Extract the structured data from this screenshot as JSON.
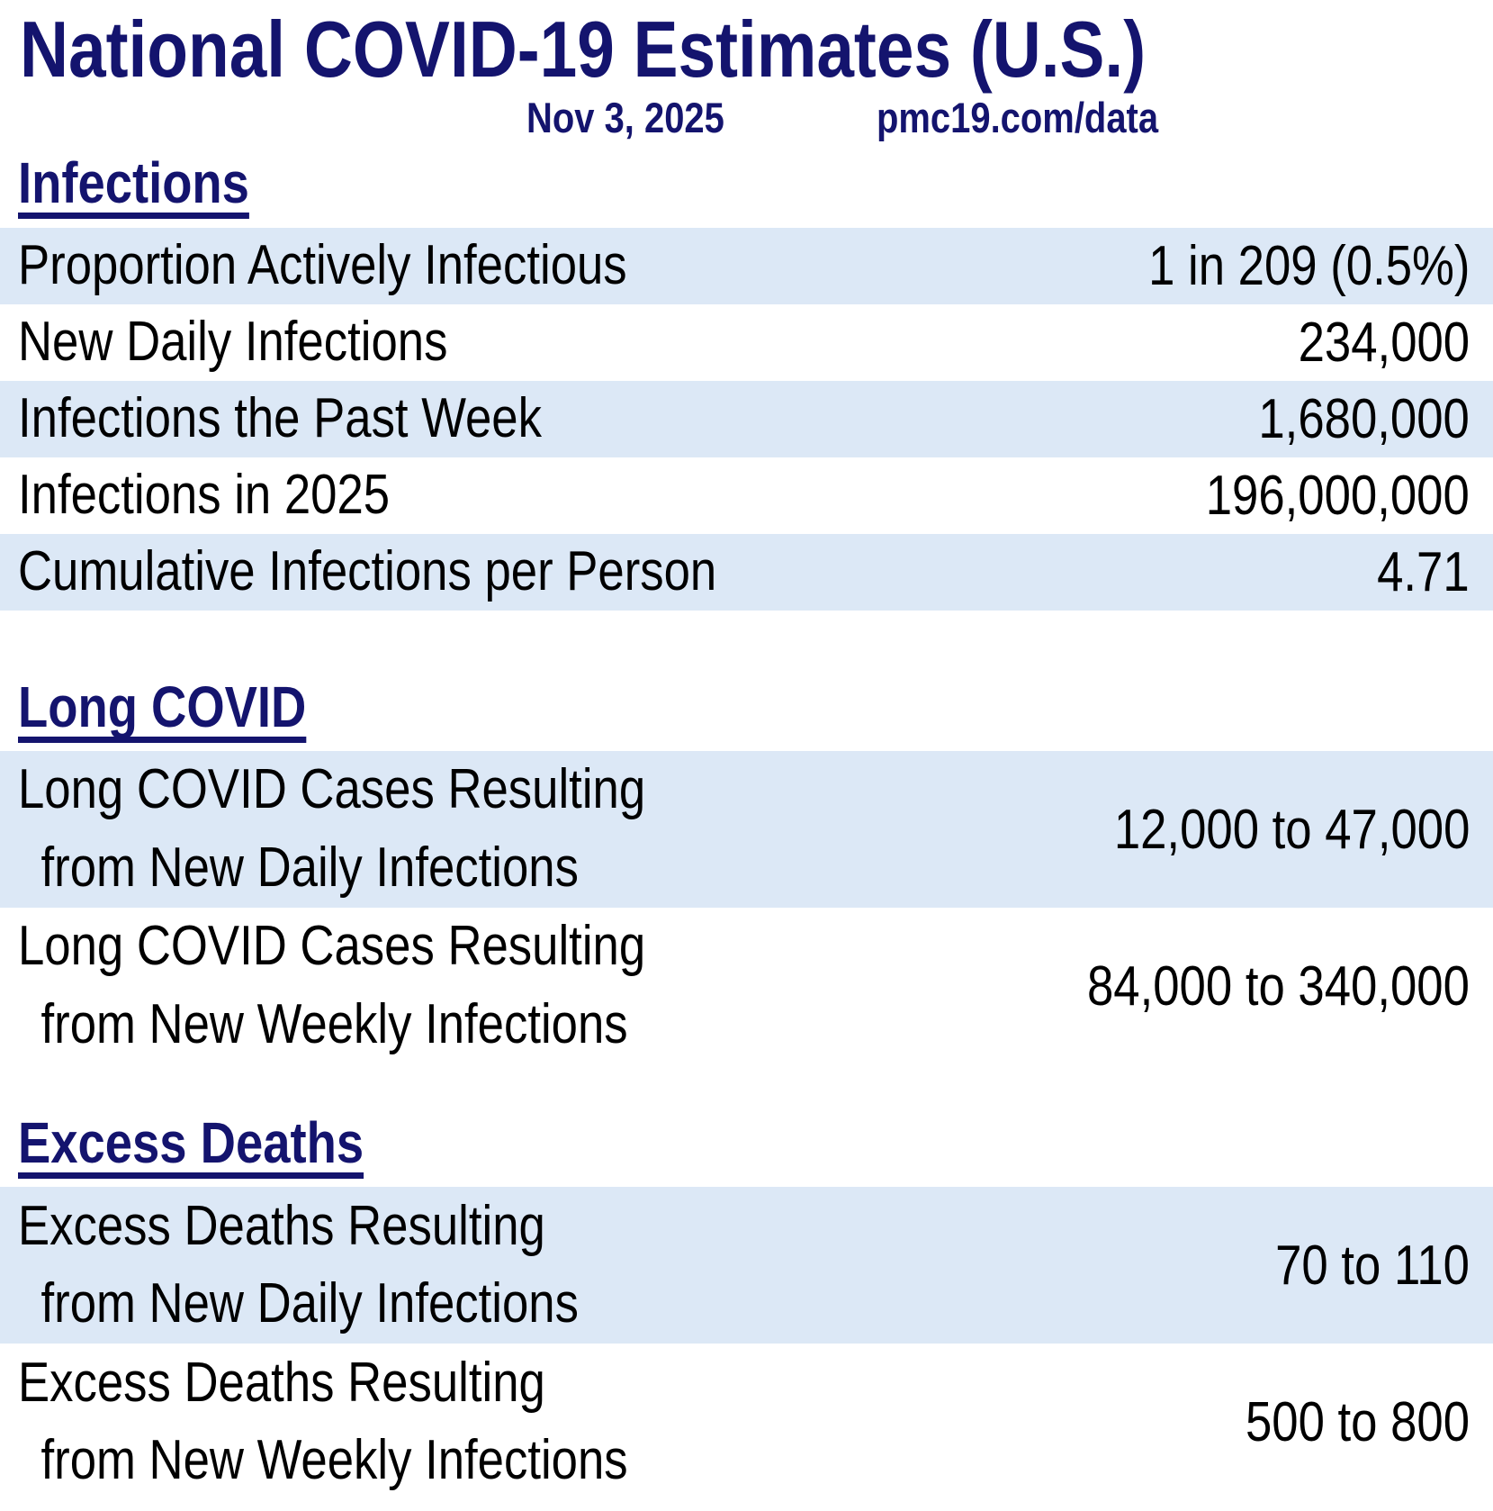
{
  "colors": {
    "accent_navy": "#14146e",
    "row_highlight": "#dce8f6",
    "text": "#000000",
    "background": "#ffffff"
  },
  "chart_data": {
    "type": "table",
    "title": "National COVID-19 Estimates (U.S.)",
    "date": "Nov 3, 2025",
    "source": "pmc19.com/data",
    "layout": {
      "zebra_striping": true,
      "values_right_aligned": true
    },
    "sections": [
      {
        "heading": "Infections",
        "rows": [
          {
            "label": "Proportion Actively Infectious",
            "value": "1 in 209 (0.5%)",
            "numeric": 0.005
          },
          {
            "label": "New Daily Infections",
            "value": "234,000",
            "numeric": 234000
          },
          {
            "label": "Infections the Past Week",
            "value": "1,680,000",
            "numeric": 1680000
          },
          {
            "label": "Infections in 2025",
            "value": "196,000,000",
            "numeric": 196000000
          },
          {
            "label": "Cumulative Infections per Person",
            "value": "4.71",
            "numeric": 4.71
          }
        ]
      },
      {
        "heading": "Long COVID",
        "rows": [
          {
            "label": "Long COVID Cases Resulting",
            "label2": "from New Daily Infections",
            "value": "12,000 to 47,000",
            "numeric_range": [
              12000,
              47000
            ]
          },
          {
            "label": "Long COVID Cases Resulting",
            "label2": "from New Weekly Infections",
            "value": "84,000 to 340,000",
            "numeric_range": [
              84000,
              340000
            ]
          }
        ]
      },
      {
        "heading": "Excess Deaths",
        "rows": [
          {
            "label": "Excess Deaths Resulting",
            "label2": "from New Daily Infections",
            "value": "70 to 110",
            "numeric_range": [
              70,
              110
            ]
          },
          {
            "label": "Excess Deaths Resulting",
            "label2": "from New Weekly Infections",
            "value": "500 to 800",
            "numeric_range": [
              500,
              800
            ]
          }
        ]
      }
    ]
  }
}
